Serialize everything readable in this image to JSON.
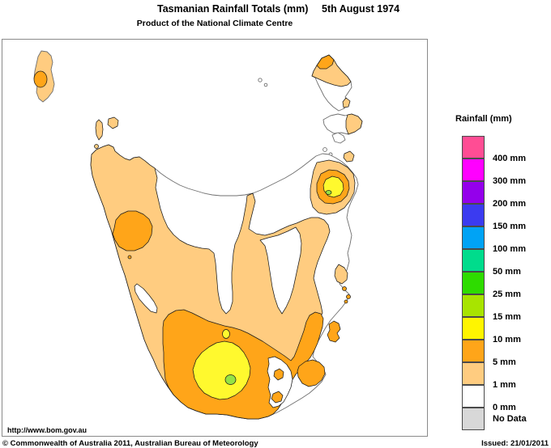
{
  "header": {
    "title": "Tasmanian Rainfall Totals (mm)",
    "date": "5th August 1974",
    "subtitle": "Product of the National Climate Centre"
  },
  "footer": {
    "url": "http://www.bom.gov.au",
    "copyright": "© Commonwealth of Australia 2011, Australian Bureau of Meteorology",
    "issued": "Issued: 21/01/2011"
  },
  "legend": {
    "title": "Rainfall (mm)",
    "items": [
      {
        "label": "400 mm",
        "color": "#FF4D94"
      },
      {
        "label": "300 mm",
        "color": "#FF00FF"
      },
      {
        "label": "200 mm",
        "color": "#9400EB"
      },
      {
        "label": "150 mm",
        "color": "#3B3BF0"
      },
      {
        "label": "100 mm",
        "color": "#00A3F5"
      },
      {
        "label": "50 mm",
        "color": "#00DC8C"
      },
      {
        "label": "25 mm",
        "color": "#2EDC00"
      },
      {
        "label": "15 mm",
        "color": "#A8E400"
      },
      {
        "label": "10 mm",
        "color": "#FFF500"
      },
      {
        "label": "5 mm",
        "color": "#FFA519"
      },
      {
        "label": "1 mm",
        "color": "#FFCC80"
      },
      {
        "label": "0 mm",
        "color": "#FFFFFF"
      },
      {
        "label": "No Data",
        "color": "#D8D8D8"
      }
    ]
  },
  "colors": {
    "sea_white": "#FFFFFF",
    "band_1mm_white": "#FFFFFF",
    "band_5mm_light_orange": "#FFCC80",
    "band_10mm_orange": "#FFA519",
    "band_15mm_yellow": "#FFF92E",
    "band_25mm_green": "#95E344"
  }
}
